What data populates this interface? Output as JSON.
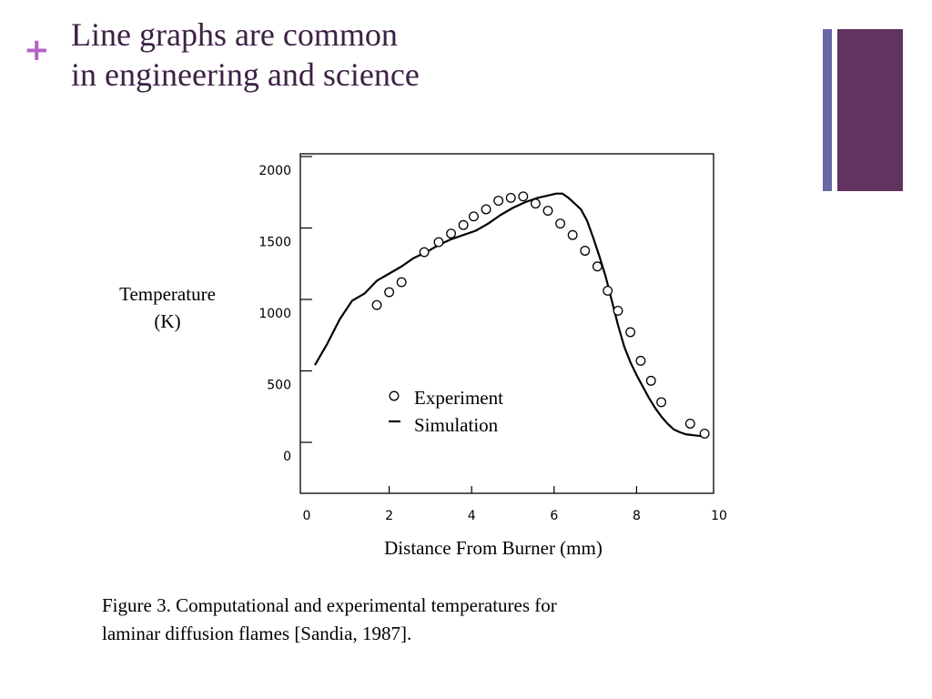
{
  "slide": {
    "bullet_symbol": "+",
    "title_line1": "Line graphs are common",
    "title_line2": "in engineering and science",
    "caption_line1": "Figure 3. Computational and experimental temperatures for",
    "caption_line2": "laminar diffusion flames [Sandia, 1987].",
    "colors": {
      "accent_plus": "#b660c6",
      "title": "#3d2244",
      "bar_thin": "#6767a5",
      "bar_wide": "#613360"
    }
  },
  "chart_data": {
    "type": "line",
    "xlabel": "Distance From Burner (mm)",
    "ylabel_line1": "Temperature",
    "ylabel_line2": "(K)",
    "xlim": [
      0,
      10
    ],
    "ylim": [
      0,
      2000
    ],
    "x_ticks": [
      0,
      2,
      4,
      6,
      8,
      10
    ],
    "y_ticks": [
      0,
      500,
      1000,
      1500,
      2000
    ],
    "x_tick_labels": [
      "0",
      "2",
      "4",
      "6",
      "8",
      "10"
    ],
    "y_tick_labels": [
      "0",
      "500",
      "1000",
      "1500",
      "2000"
    ],
    "grid": false,
    "legend_position": "center",
    "series": [
      {
        "name": "Experiment",
        "style": "markers",
        "marker": "open-circle",
        "x": [
          1.7,
          2.0,
          2.3,
          2.85,
          3.2,
          3.5,
          3.8,
          4.05,
          4.35,
          4.65,
          4.95,
          5.25,
          5.55,
          5.85,
          6.15,
          6.45,
          6.75,
          7.05,
          7.3,
          7.55,
          7.85,
          8.1,
          8.35,
          8.6,
          9.3,
          9.65
        ],
        "y": [
          1050,
          1140,
          1210,
          1420,
          1490,
          1550,
          1610,
          1670,
          1720,
          1780,
          1800,
          1810,
          1760,
          1710,
          1620,
          1540,
          1430,
          1320,
          1150,
          1010,
          860,
          660,
          520,
          370,
          220,
          150
        ]
      },
      {
        "name": "Simulation",
        "style": "line",
        "x": [
          0.2,
          0.5,
          0.8,
          1.1,
          1.4,
          1.7,
          2.0,
          2.3,
          2.6,
          2.9,
          3.2,
          3.5,
          3.8,
          4.1,
          4.4,
          4.7,
          5.0,
          5.3,
          5.6,
          5.9,
          6.05,
          6.2,
          6.35,
          6.5,
          6.65,
          6.8,
          6.95,
          7.1,
          7.25,
          7.4,
          7.55,
          7.7,
          7.85,
          8.0,
          8.15,
          8.3,
          8.45,
          8.6,
          8.75,
          8.9,
          9.05,
          9.2,
          9.35,
          9.5,
          9.65
        ],
        "y": [
          630,
          780,
          950,
          1080,
          1130,
          1220,
          1270,
          1320,
          1380,
          1420,
          1470,
          1510,
          1540,
          1570,
          1620,
          1680,
          1730,
          1770,
          1800,
          1820,
          1830,
          1830,
          1800,
          1760,
          1720,
          1640,
          1520,
          1390,
          1250,
          1080,
          910,
          760,
          650,
          560,
          480,
          400,
          330,
          270,
          220,
          180,
          160,
          145,
          140,
          135,
          130
        ]
      }
    ]
  }
}
